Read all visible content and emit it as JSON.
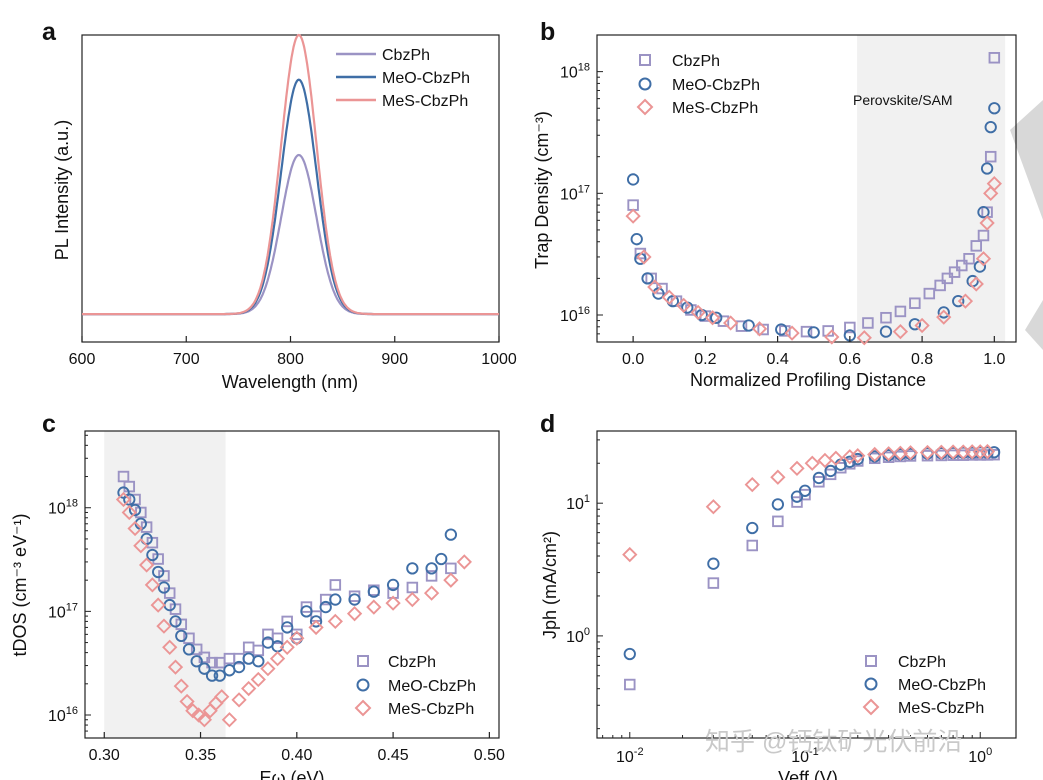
{
  "colors": {
    "cbz": "#9b93c4",
    "meo": "#3f6ea6",
    "mes": "#eb9595",
    "shade": "#f1f1f1"
  },
  "series_names": [
    "CbzPh",
    "MeO-CbzPh",
    "MeS-CbzPh"
  ],
  "watermark": "知乎 @钙钛矿光伏前沿",
  "chart_data": [
    {
      "id": "a",
      "panel_label": "a",
      "type": "line",
      "xlabel": "Wavelength (nm)",
      "ylabel": "PL Intensity (a.u.)",
      "xlim": [
        600,
        1000
      ],
      "ylim": [
        0,
        1.1
      ],
      "xticks": [
        600,
        700,
        800,
        900,
        1000
      ],
      "xtick_labels": [
        "600",
        "700",
        "800",
        "900",
        "1000"
      ],
      "legend_location": "top-right",
      "peak_nm": 808,
      "fwhm_nm": 40,
      "series": [
        {
          "name": "CbzPh",
          "color_key": "cbz",
          "amplitude": 0.57
        },
        {
          "name": "MeO-CbzPh",
          "color_key": "meo",
          "amplitude": 0.84
        },
        {
          "name": "MeS-CbzPh",
          "color_key": "mes",
          "amplitude": 1.0
        }
      ]
    },
    {
      "id": "b",
      "panel_label": "b",
      "type": "scatter",
      "yscale": "log",
      "xlabel": "Normalized Profiling Distance",
      "ylabel": "Trap Density (cm⁻³)",
      "xlim": [
        -0.1,
        1.06
      ],
      "ylim": [
        6000000000000000.0,
        2e+18
      ],
      "xticks": [
        0.0,
        0.2,
        0.4,
        0.6,
        0.8,
        1.0
      ],
      "xtick_labels": [
        "0.0",
        "0.2",
        "0.4",
        "0.6",
        "0.8",
        "1.0"
      ],
      "ytick_exps": [
        16,
        17,
        18
      ],
      "shaded_region": {
        "x": [
          0.62,
          1.03
        ],
        "label": "Perovskite/SAM"
      },
      "legend_location": "top-left",
      "series": [
        {
          "name": "CbzPh",
          "marker": "square",
          "color_key": "cbz",
          "x": [
            0.0,
            0.02,
            0.05,
            0.08,
            0.12,
            0.16,
            0.2,
            0.25,
            0.3,
            0.36,
            0.42,
            0.48,
            0.54,
            0.6,
            0.65,
            0.7,
            0.74,
            0.78,
            0.82,
            0.85,
            0.87,
            0.89,
            0.91,
            0.93,
            0.95,
            0.97,
            0.98,
            0.99,
            1.0
          ],
          "y": [
            8e+16,
            3.2e+16,
            2e+16,
            1.65e+16,
            1.3e+16,
            1.1e+16,
            9800000000000000.0,
            8900000000000000.0,
            8100000000000000.0,
            7600000000000000.0,
            7400000000000000.0,
            7300000000000000.0,
            7400000000000000.0,
            7900000000000000.0,
            8600000000000000.0,
            9500000000000000.0,
            1.07e+16,
            1.25e+16,
            1.5e+16,
            1.75e+16,
            2e+16,
            2.25e+16,
            2.55e+16,
            2.9e+16,
            3.7e+16,
            4.5e+16,
            7e+16,
            2e+17,
            1.3e+18
          ]
        },
        {
          "name": "MeO-CbzPh",
          "marker": "circle",
          "color_key": "meo",
          "x": [
            0.0,
            0.01,
            0.02,
            0.04,
            0.07,
            0.11,
            0.15,
            0.19,
            0.23,
            0.32,
            0.41,
            0.5,
            0.6,
            0.7,
            0.78,
            0.86,
            0.9,
            0.94,
            0.96,
            0.97,
            0.98,
            0.99,
            1.0
          ],
          "y": [
            1.3e+17,
            4.2e+16,
            2.9e+16,
            2e+16,
            1.5e+16,
            1.3e+16,
            1.15e+16,
            1e+16,
            9500000000000000.0,
            8200000000000000.0,
            7600000000000000.0,
            7200000000000000.0,
            6800000000000000.0,
            7300000000000000.0,
            8400000000000000.0,
            1.05e+16,
            1.3e+16,
            1.9e+16,
            2.5e+16,
            7e+16,
            1.6e+17,
            3.5e+17,
            5e+17
          ]
        },
        {
          "name": "MeS-CbzPh",
          "marker": "diamond",
          "color_key": "mes",
          "x": [
            0.0,
            0.03,
            0.06,
            0.1,
            0.14,
            0.18,
            0.22,
            0.27,
            0.35,
            0.44,
            0.55,
            0.64,
            0.74,
            0.8,
            0.86,
            0.92,
            0.95,
            0.97,
            0.98,
            0.99,
            1.0
          ],
          "y": [
            6.5e+16,
            3e+16,
            1.7e+16,
            1.4e+16,
            1.2e+16,
            1.05e+16,
            9500000000000000.0,
            8600000000000000.0,
            7700000000000000.0,
            7100000000000000.0,
            6600000000000000.0,
            6500000000000000.0,
            7300000000000000.0,
            8200000000000000.0,
            9600000000000000.0,
            1.3e+16,
            1.8e+16,
            2.9e+16,
            5.7e+16,
            1e+17,
            1.2e+17
          ]
        }
      ]
    },
    {
      "id": "c",
      "panel_label": "c",
      "type": "scatter",
      "yscale": "log",
      "xlabel": "Eω (eV)",
      "ylabel": "tDOS (cm⁻³ eV⁻¹)",
      "xlim": [
        0.29,
        0.505
      ],
      "ylim": [
        6000000000000000.0,
        5.5e+18
      ],
      "xticks": [
        0.3,
        0.35,
        0.4,
        0.45,
        0.5
      ],
      "xtick_labels": [
        "0.30",
        "0.35",
        "0.40",
        "0.45",
        "0.50"
      ],
      "ytick_exps": [
        16,
        17,
        18
      ],
      "shaded_region": {
        "x": [
          0.3,
          0.363
        ],
        "label": ""
      },
      "legend_location": "bottom-right",
      "series": [
        {
          "name": "CbzPh",
          "marker": "square",
          "color_key": "cbz",
          "x": [
            0.31,
            0.313,
            0.316,
            0.319,
            0.322,
            0.325,
            0.328,
            0.331,
            0.334,
            0.337,
            0.34,
            0.344,
            0.348,
            0.352,
            0.356,
            0.36,
            0.365,
            0.37,
            0.375,
            0.38,
            0.385,
            0.39,
            0.395,
            0.4,
            0.405,
            0.41,
            0.415,
            0.42,
            0.43,
            0.44,
            0.45,
            0.46,
            0.47,
            0.48
          ],
          "y": [
            2e+18,
            1.6e+18,
            1.2e+18,
            9e+17,
            6.5e+17,
            4.6e+17,
            3.2e+17,
            2.2e+17,
            1.5e+17,
            1.05e+17,
            7.5e+16,
            5.5e+16,
            4.3e+16,
            3.6e+16,
            3.2e+16,
            3.2e+16,
            3.5e+16,
            3.5e+16,
            4.5e+16,
            4.2e+16,
            6e+16,
            5.5e+16,
            8e+16,
            6e+16,
            1.1e+17,
            9e+16,
            1.3e+17,
            1.8e+17,
            1.4e+17,
            1.6e+17,
            1.5e+17,
            1.7e+17,
            2.2e+17,
            2.6e+17
          ]
        },
        {
          "name": "MeO-CbzPh",
          "marker": "circle",
          "color_key": "meo",
          "x": [
            0.31,
            0.313,
            0.316,
            0.319,
            0.322,
            0.325,
            0.328,
            0.331,
            0.334,
            0.337,
            0.34,
            0.344,
            0.348,
            0.352,
            0.356,
            0.36,
            0.365,
            0.37,
            0.375,
            0.38,
            0.385,
            0.39,
            0.395,
            0.4,
            0.405,
            0.41,
            0.415,
            0.42,
            0.43,
            0.44,
            0.45,
            0.46,
            0.47,
            0.475,
            0.48
          ],
          "y": [
            1.4e+18,
            1.2e+18,
            9.5e+17,
            7e+17,
            5e+17,
            3.5e+17,
            2.4e+17,
            1.7e+17,
            1.15e+17,
            8e+16,
            5.8e+16,
            4.3e+16,
            3.3e+16,
            2.8e+16,
            2.4e+16,
            2.4e+16,
            2.7e+16,
            2.9e+16,
            3.5e+16,
            3.3e+16,
            5e+16,
            4.6e+16,
            7e+16,
            5.5e+16,
            1e+17,
            8e+16,
            1.1e+17,
            1.3e+17,
            1.3e+17,
            1.55e+17,
            1.8e+17,
            2.6e+17,
            2.6e+17,
            3.2e+17,
            5.5e+17
          ]
        },
        {
          "name": "MeS-CbzPh",
          "marker": "diamond",
          "color_key": "mes",
          "x": [
            0.31,
            0.313,
            0.316,
            0.319,
            0.322,
            0.325,
            0.328,
            0.331,
            0.334,
            0.337,
            0.34,
            0.343,
            0.346,
            0.349,
            0.352,
            0.355,
            0.358,
            0.361,
            0.365,
            0.37,
            0.375,
            0.38,
            0.385,
            0.39,
            0.395,
            0.4,
            0.41,
            0.42,
            0.43,
            0.44,
            0.45,
            0.46,
            0.47,
            0.48,
            0.487
          ],
          "y": [
            1.2e+18,
            9e+17,
            6.3e+17,
            4.3e+17,
            2.8e+17,
            1.8e+17,
            1.15e+17,
            7.2e+16,
            4.5e+16,
            2.9e+16,
            1.9e+16,
            1.35e+16,
            1.1e+16,
            1e+16,
            9000000000000000.0,
            1.1e+16,
            1.3e+16,
            1.5e+16,
            9000000000000000.0,
            1.4e+16,
            1.8e+16,
            2.2e+16,
            2.8e+16,
            3.5e+16,
            4.5e+16,
            5.5e+16,
            7e+16,
            8e+16,
            9.5e+16,
            1.1e+17,
            1.2e+17,
            1.3e+17,
            1.5e+17,
            2e+17,
            3e+17
          ]
        }
      ]
    },
    {
      "id": "d",
      "panel_label": "d",
      "type": "scatter",
      "yscale": "log",
      "xscale": "log",
      "xlabel": "Veff (V)",
      "ylabel": "Jph (mA/cm²)",
      "xlim": [
        0.0065,
        1.6
      ],
      "ylim": [
        0.17,
        35
      ],
      "xtick_exps": [
        -2,
        -1,
        0
      ],
      "ytick_exps": [
        0,
        1
      ],
      "legend_location": "bottom-right",
      "series": [
        {
          "name": "CbzPh",
          "marker": "square",
          "color_key": "cbz",
          "x": [
            0.01,
            0.03,
            0.05,
            0.07,
            0.09,
            0.1,
            0.12,
            0.14,
            0.16,
            0.18,
            0.2,
            0.25,
            0.3,
            0.35,
            0.4,
            0.5,
            0.6,
            0.7,
            0.8,
            0.9,
            1.0,
            1.1,
            1.2
          ],
          "y": [
            0.43,
            2.5,
            4.8,
            7.3,
            10.2,
            11.6,
            14.5,
            16.5,
            18.5,
            19.8,
            20.8,
            21.8,
            22.2,
            22.5,
            22.7,
            22.8,
            22.9,
            23.0,
            23.0,
            23.1,
            23.1,
            23.1,
            23.2
          ]
        },
        {
          "name": "MeO-CbzPh",
          "marker": "circle",
          "color_key": "meo",
          "x": [
            0.01,
            0.03,
            0.05,
            0.07,
            0.09,
            0.1,
            0.12,
            0.14,
            0.16,
            0.18,
            0.2,
            0.25,
            0.3,
            0.35,
            0.4,
            0.5,
            0.6,
            0.7,
            0.8,
            0.9,
            1.0,
            1.1,
            1.2
          ],
          "y": [
            0.73,
            3.5,
            6.5,
            9.8,
            11.2,
            12.4,
            15.5,
            17.5,
            19.5,
            20.5,
            21.5,
            22.5,
            23.0,
            23.3,
            23.5,
            23.7,
            23.8,
            23.9,
            24.0,
            24.0,
            24.1,
            24.1,
            24.2
          ]
        },
        {
          "name": "MeS-CbzPh",
          "marker": "diamond",
          "color_key": "mes",
          "x": [
            0.01,
            0.03,
            0.05,
            0.07,
            0.09,
            0.11,
            0.13,
            0.15,
            0.18,
            0.2,
            0.25,
            0.3,
            0.35,
            0.4,
            0.5,
            0.6,
            0.7,
            0.8,
            0.9,
            1.0,
            1.1
          ],
          "y": [
            4.1,
            9.4,
            13.8,
            15.7,
            18.3,
            20.0,
            21.0,
            21.8,
            22.4,
            22.8,
            23.3,
            23.6,
            23.8,
            24.0,
            24.1,
            24.2,
            24.3,
            24.3,
            24.4,
            24.4,
            24.5
          ]
        }
      ]
    }
  ]
}
